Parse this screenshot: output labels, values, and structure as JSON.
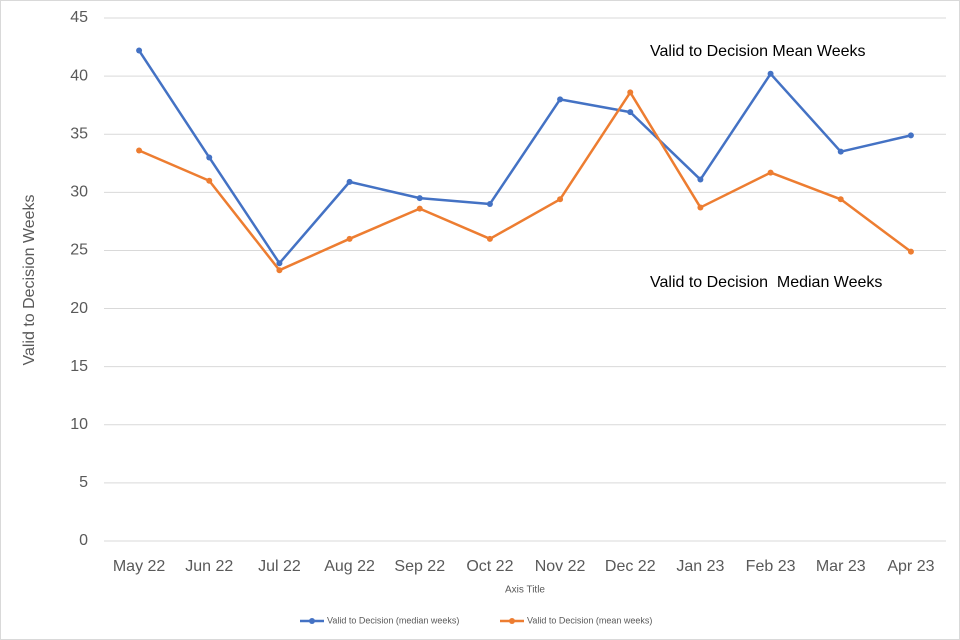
{
  "chart_data": {
    "type": "line",
    "categories": [
      "May 22",
      "Jun 22",
      "Jul 22",
      "Aug 22",
      "Sep 22",
      "Oct 22",
      "Nov 22",
      "Dec 22",
      "Jan 23",
      "Feb 23",
      "Mar 23",
      "Apr 23"
    ],
    "series": [
      {
        "name": "Valid to Decision (median weeks)",
        "color": "#4472c4",
        "values": [
          42.2,
          33.0,
          23.9,
          30.9,
          29.5,
          29.0,
          38.0,
          36.9,
          31.1,
          40.2,
          33.5,
          34.9
        ]
      },
      {
        "name": "Valid to Decision (mean weeks)",
        "color": "#ed7d31",
        "values": [
          33.6,
          31.0,
          23.3,
          26.0,
          28.6,
          26.0,
          29.4,
          38.6,
          28.7,
          31.7,
          29.4,
          24.9
        ]
      }
    ],
    "ylim": [
      0,
      45
    ],
    "yticks": [
      0,
      5,
      10,
      15,
      20,
      25,
      30,
      35,
      40,
      45
    ],
    "grid": true,
    "y_label": "Valid to Decision Weeks",
    "x_label": "Axis Title",
    "annotations": [
      "Valid to Decision Mean Weeks",
      "Valid to Decision  Median Weeks"
    ],
    "legend": "bottom"
  }
}
